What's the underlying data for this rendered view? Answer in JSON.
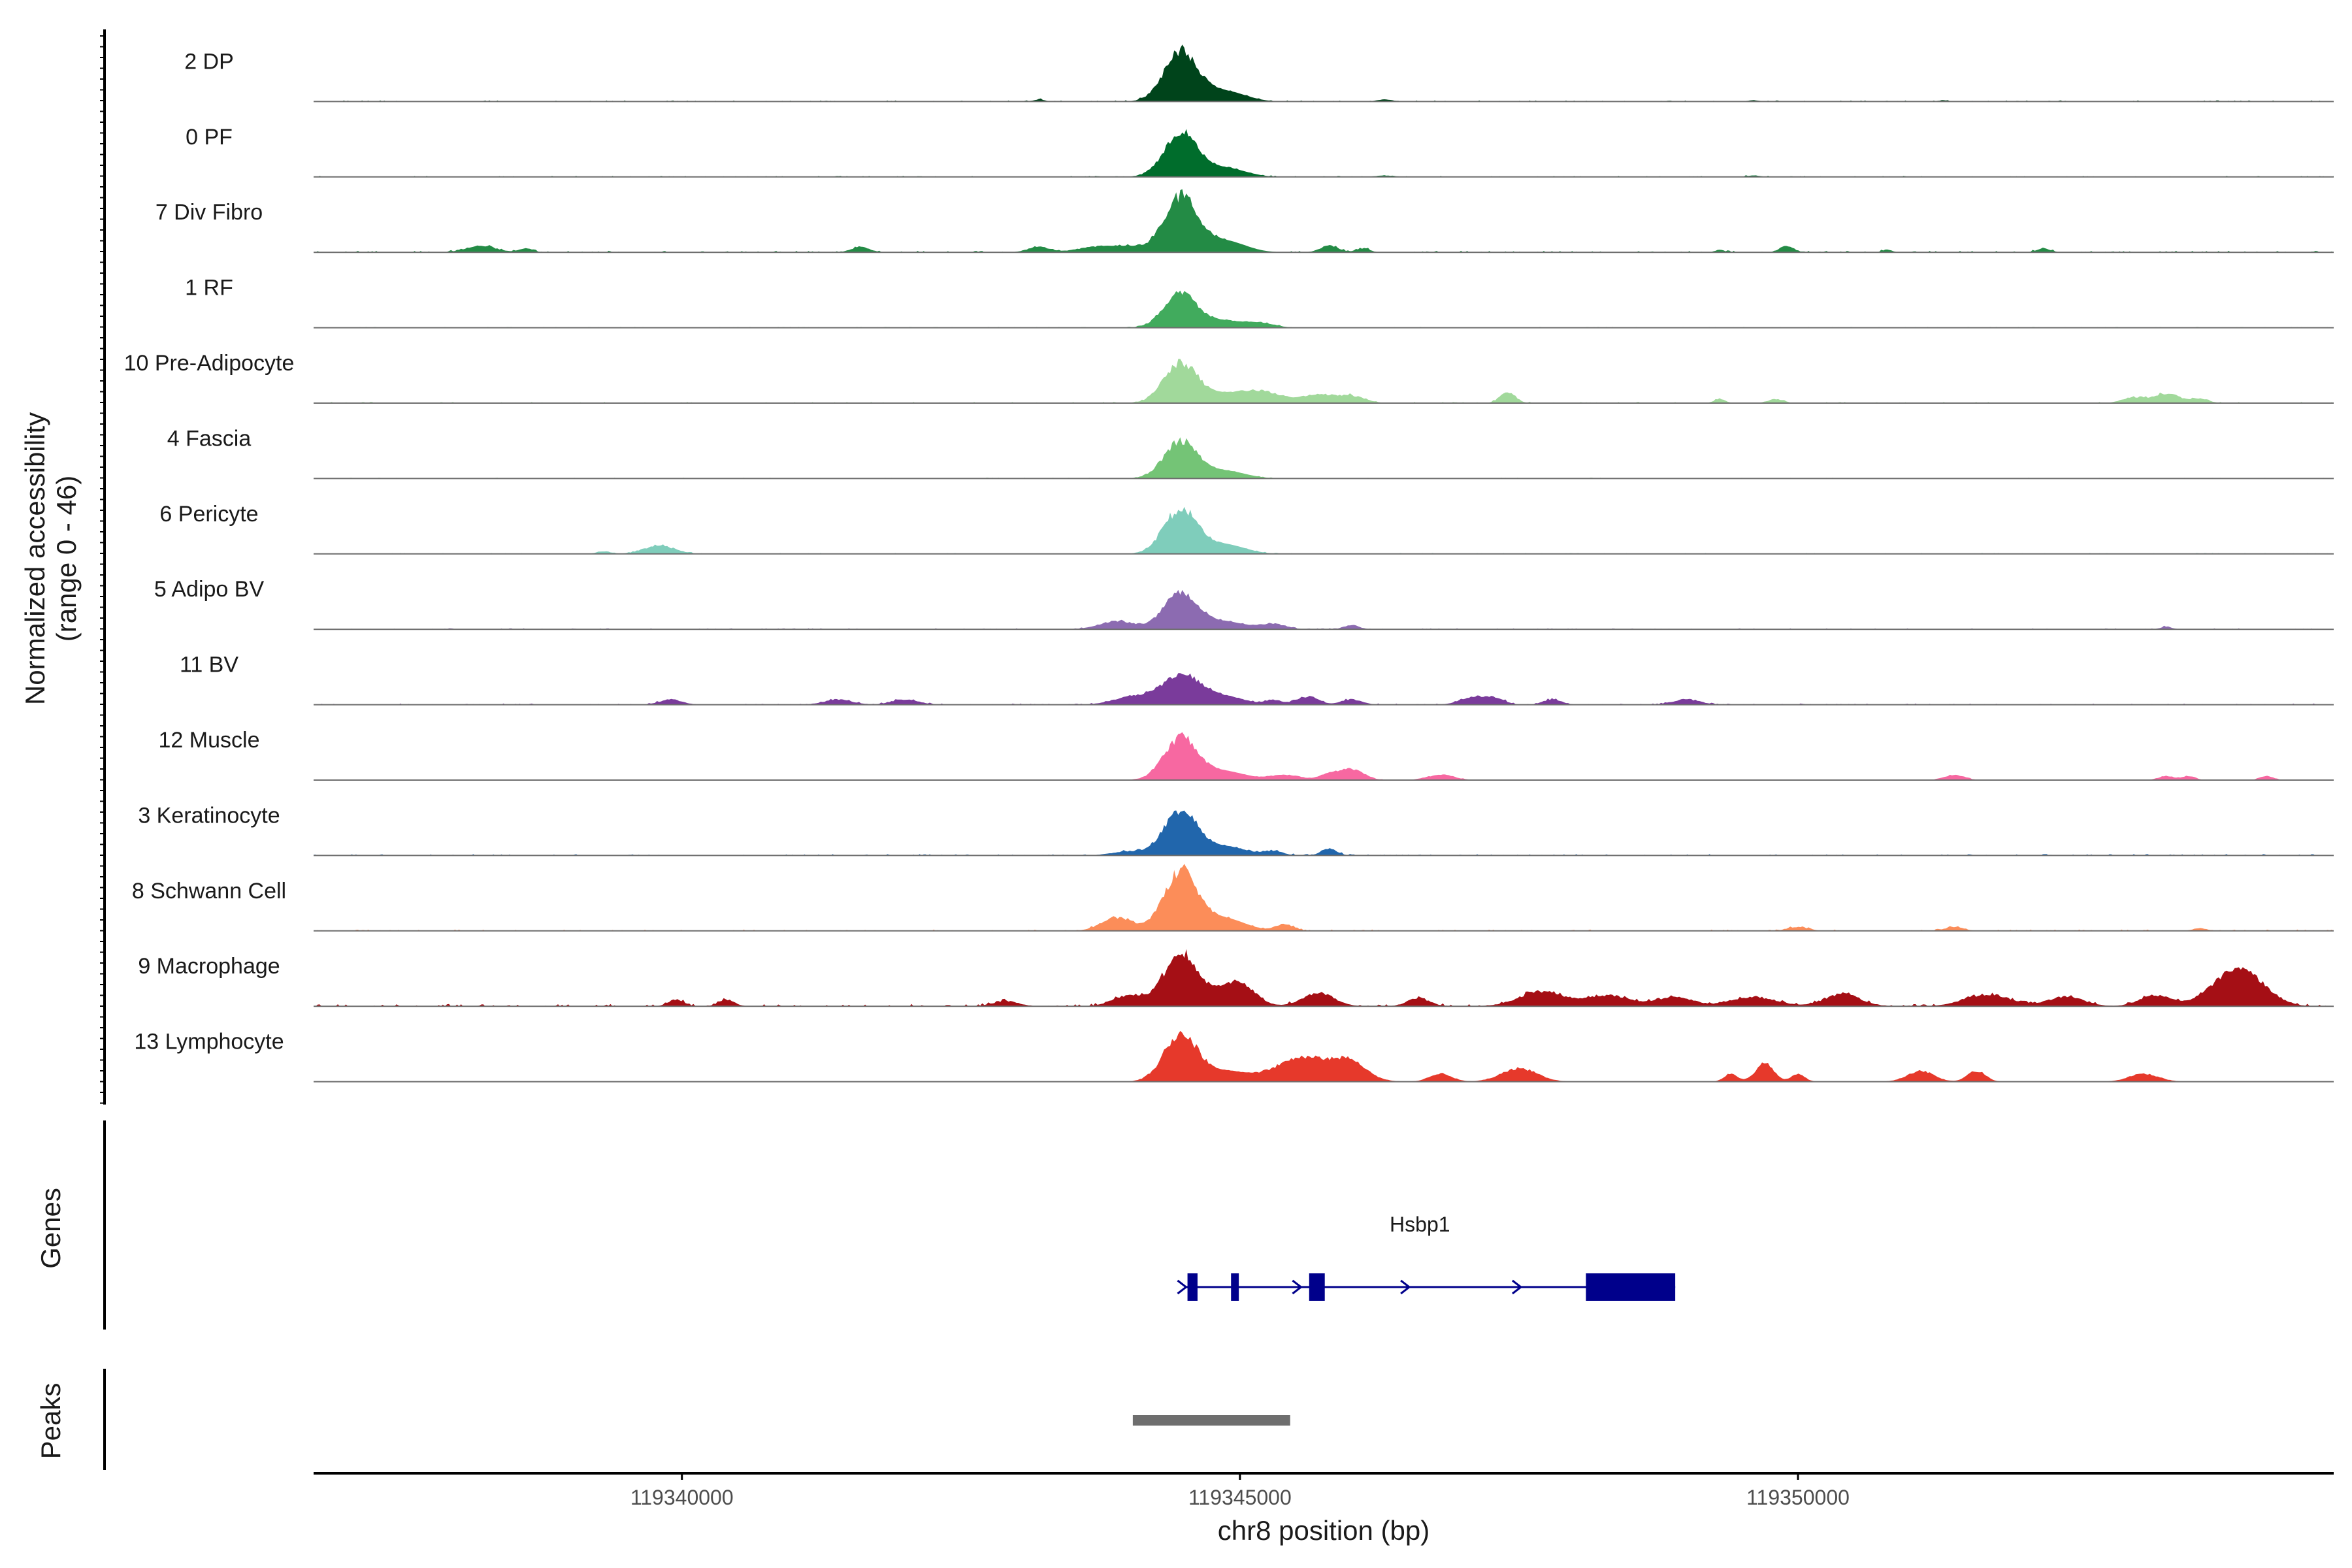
{
  "chart_data": {
    "type": "area",
    "y_axis_title": {
      "line1": "Normalized accessibility",
      "line2": "(range 0 - 46)"
    },
    "y_range": [
      0,
      46
    ],
    "x_axis_title": "chr8 position (bp)",
    "x_range": [
      119336700,
      119354800
    ],
    "x_ticks": [
      119340000,
      119345000,
      119350000
    ],
    "x_tick_labels": [
      "119340000",
      "119345000",
      "119350000"
    ],
    "tracks": [
      {
        "label": "2 DP",
        "color": "#00441b",
        "peak": 38,
        "peaks": [
          [
            119343200,
            1.5,
            50
          ],
          [
            119346300,
            1.5,
            70
          ],
          [
            119349600,
            1,
            50
          ],
          [
            119351300,
            1,
            40
          ]
        ],
        "noise": 0.8
      },
      {
        "label": "0 PF",
        "color": "#006d2c",
        "peak": 33,
        "peaks": [
          [
            119346300,
            1,
            90
          ],
          [
            119349600,
            1,
            60
          ]
        ],
        "noise": 0.7
      },
      {
        "label": "7 Div Fibro",
        "color": "#238b45",
        "peak": 42,
        "peaks": [
          [
            119338200,
            5,
            130
          ],
          [
            119338600,
            3,
            60
          ],
          [
            119341600,
            4,
            80
          ],
          [
            119343200,
            4,
            100
          ],
          [
            119343700,
            4,
            160
          ],
          [
            119344000,
            4,
            140
          ],
          [
            119345800,
            5,
            80
          ],
          [
            119346100,
            3,
            60
          ],
          [
            119350800,
            2,
            40
          ],
          [
            119349300,
            2,
            40
          ],
          [
            119349900,
            5,
            60
          ],
          [
            119352200,
            3,
            60
          ]
        ],
        "noise": 1.0
      },
      {
        "label": "1 RF",
        "color": "#41ab5d",
        "peak": 25,
        "peaks": [
          [
            119345200,
            3,
            120
          ]
        ],
        "noise": 0.5
      },
      {
        "label": "10 Pre-Adipocyte",
        "color": "#a1d99b",
        "peak": 30,
        "peaks": [
          [
            119345200,
            8,
            180
          ],
          [
            119345700,
            6,
            150
          ],
          [
            119346000,
            5,
            120
          ],
          [
            119347400,
            8,
            70
          ],
          [
            119349300,
            3,
            50
          ],
          [
            119349800,
            3,
            70
          ],
          [
            119353000,
            4,
            100
          ],
          [
            119353300,
            7,
            120
          ],
          [
            119353600,
            3,
            80
          ]
        ],
        "noise": 0.8
      },
      {
        "label": "4 Fascia",
        "color": "#74c476",
        "peak": 28,
        "peaks": [],
        "noise": 0.5
      },
      {
        "label": "6 Pericyte",
        "color": "#7fcdbb",
        "peak": 34,
        "peaks": [
          [
            119339800,
            6,
            140
          ],
          [
            119339300,
            2,
            60
          ]
        ],
        "noise": 0.6
      },
      {
        "label": "5 Adipo BV",
        "color": "#8c6bb1",
        "peak": 28,
        "peaks": [
          [
            119343900,
            6,
            160
          ],
          [
            119345300,
            4,
            110
          ],
          [
            119346000,
            3,
            70
          ],
          [
            119353300,
            2,
            50
          ]
        ],
        "noise": 0.7
      },
      {
        "label": "11 BV",
        "color": "#7a3b9b",
        "peak": 14,
        "peaks": [
          [
            119339900,
            4,
            100
          ],
          [
            119341400,
            4,
            120
          ],
          [
            119342000,
            4,
            120
          ],
          [
            119344000,
            4,
            150
          ],
          [
            119344500,
            9,
            300
          ],
          [
            119345300,
            3,
            70
          ],
          [
            119345600,
            6,
            100
          ],
          [
            119346000,
            4,
            90
          ],
          [
            119347100,
            6,
            120
          ],
          [
            119347300,
            4,
            80
          ],
          [
            119347800,
            4,
            80
          ],
          [
            119349000,
            4,
            120
          ]
        ],
        "noise": 0.8
      },
      {
        "label": "12 Muscle",
        "color": "#f768a1",
        "peak": 32,
        "peaks": [
          [
            119345400,
            4,
            140
          ],
          [
            119345800,
            4,
            90
          ],
          [
            119346000,
            8,
            110
          ],
          [
            119346800,
            4,
            120
          ],
          [
            119351400,
            4,
            90
          ],
          [
            119353300,
            3,
            70
          ],
          [
            119353500,
            3,
            60
          ],
          [
            119354200,
            3,
            60
          ]
        ],
        "noise": 0.3
      },
      {
        "label": "3 Keratinocyte",
        "color": "#2166ac",
        "peak": 33,
        "peaks": [
          [
            119344000,
            3,
            150
          ],
          [
            119345300,
            3,
            90
          ],
          [
            119345800,
            5,
            70
          ]
        ],
        "noise": 0.9
      },
      {
        "label": "8 Schwann Cell",
        "color": "#fc8d59",
        "peak": 45,
        "peaks": [
          [
            119343900,
            10,
            140
          ],
          [
            119345400,
            5,
            80
          ],
          [
            119350000,
            3,
            90
          ],
          [
            119351400,
            3,
            80
          ],
          [
            119353600,
            2,
            60
          ]
        ],
        "noise": 0.9
      },
      {
        "label": "9 Macrophage",
        "color": "#a50f15",
        "peak": 40,
        "peaks": [
          [
            119344000,
            8,
            140
          ],
          [
            119345000,
            11,
            140
          ],
          [
            119345700,
            10,
            140
          ],
          [
            119346600,
            6,
            100
          ],
          [
            119347700,
            11,
            200
          ],
          [
            119348300,
            8,
            200
          ],
          [
            119348900,
            7,
            160
          ],
          [
            119349600,
            7,
            200
          ],
          [
            119350400,
            9,
            160
          ],
          [
            119351700,
            9,
            200
          ],
          [
            119352400,
            7,
            160
          ],
          [
            119353200,
            8,
            140
          ],
          [
            119353800,
            9,
            200
          ],
          [
            119354000,
            22,
            200
          ],
          [
            119339950,
            5,
            70
          ],
          [
            119340400,
            5,
            70
          ],
          [
            119342900,
            4,
            110
          ]
        ],
        "noise": 1.5
      },
      {
        "label": "13 Lymphocyte",
        "color": "#e6392b",
        "peak": 36,
        "peaks": [
          [
            119345600,
            18,
            280
          ],
          [
            119346000,
            10,
            140
          ],
          [
            119346800,
            6,
            100
          ],
          [
            119347500,
            10,
            160
          ],
          [
            119349400,
            6,
            60
          ],
          [
            119349700,
            14,
            80
          ],
          [
            119350000,
            6,
            60
          ],
          [
            119351100,
            8,
            120
          ],
          [
            119351600,
            8,
            80
          ],
          [
            119353100,
            6,
            130
          ]
        ],
        "noise": 0
      }
    ],
    "genes": [
      {
        "name": "Hsbp1",
        "start": 119344500,
        "end": 119348900,
        "color": "#00008b",
        "strand": "+",
        "exons": [
          [
            119344530,
            119344620
          ],
          [
            119344920,
            119344990
          ],
          [
            119345620,
            119345760
          ],
          [
            119348100,
            119348900
          ]
        ],
        "arrows": [
          119344500,
          119345530,
          119346500,
          119347500
        ]
      }
    ],
    "peaks": [
      {
        "start": 119344040,
        "end": 119345450,
        "color": "#6e6e6e"
      }
    ],
    "panel_titles": {
      "genes": "Genes",
      "peaks": "Peaks"
    }
  }
}
